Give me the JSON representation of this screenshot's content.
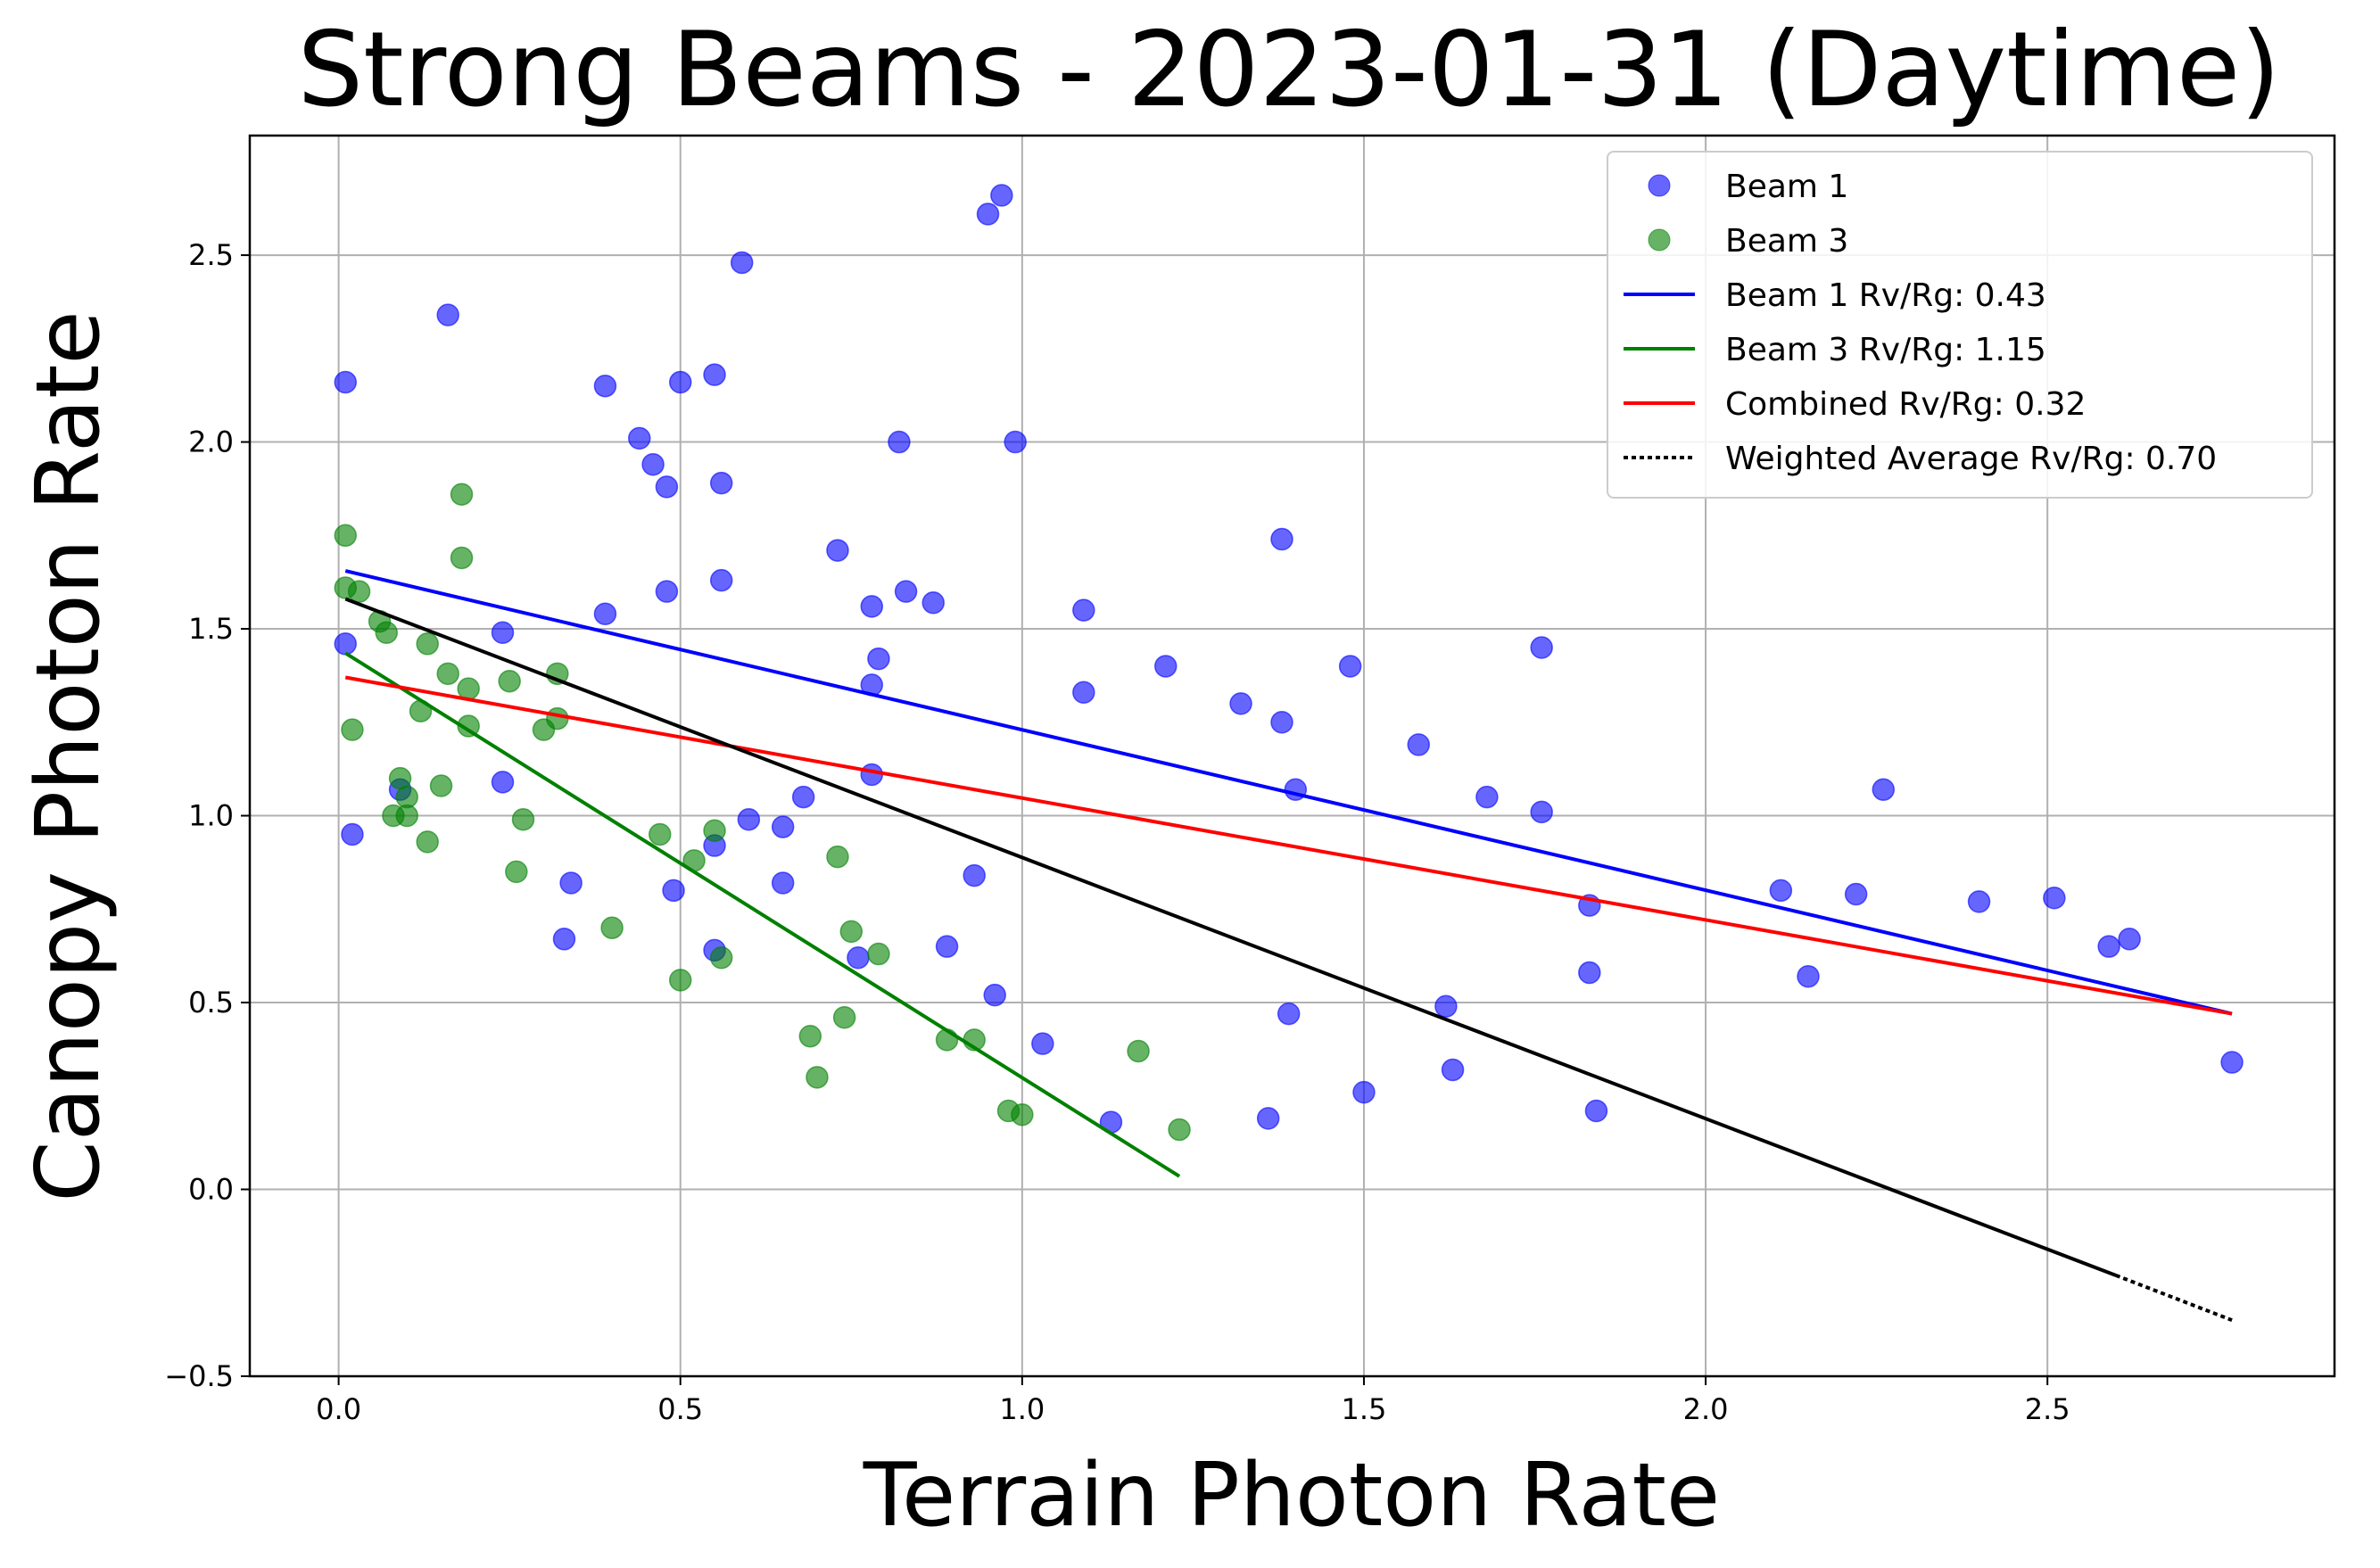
{
  "chart_data": {
    "type": "scatter",
    "title": "Strong Beams - 2023-01-31 (Daytime)",
    "xlabel": "Terrain Photon Rate",
    "ylabel": "Canopy Photon Rate",
    "xlim": [
      -0.13,
      2.92
    ],
    "ylim": [
      -0.5,
      2.82
    ],
    "xticks": [
      0.0,
      0.5,
      1.0,
      1.5,
      2.0,
      2.5
    ],
    "xtick_labels": [
      "0.0",
      "0.5",
      "1.0",
      "1.5",
      "2.0",
      "2.5"
    ],
    "yticks": [
      -0.5,
      0.0,
      0.5,
      1.0,
      1.5,
      2.0,
      2.5
    ],
    "ytick_labels": [
      "−0.5",
      "0.0",
      "0.5",
      "1.0",
      "1.5",
      "2.0",
      "2.5"
    ],
    "grid": true,
    "legend_position": "top-right",
    "series": [
      {
        "name": "Beam 1",
        "kind": "scatter",
        "color": "#0000ff",
        "points": [
          [
            0.01,
            2.16
          ],
          [
            0.02,
            0.95
          ],
          [
            0.01,
            1.46
          ],
          [
            0.16,
            2.34
          ],
          [
            0.24,
            1.49
          ],
          [
            0.24,
            1.09
          ],
          [
            0.09,
            1.07
          ],
          [
            0.33,
            0.67
          ],
          [
            0.34,
            0.82
          ],
          [
            0.39,
            2.15
          ],
          [
            0.39,
            1.54
          ],
          [
            0.44,
            2.01
          ],
          [
            0.46,
            1.94
          ],
          [
            0.48,
            1.88
          ],
          [
            0.48,
            1.6
          ],
          [
            0.49,
            0.8
          ],
          [
            0.5,
            2.16
          ],
          [
            0.55,
            2.18
          ],
          [
            0.56,
            1.89
          ],
          [
            0.56,
            1.63
          ],
          [
            0.55,
            0.92
          ],
          [
            0.55,
            0.64
          ],
          [
            0.59,
            2.48
          ],
          [
            0.6,
            0.99
          ],
          [
            0.65,
            0.97
          ],
          [
            0.65,
            0.82
          ],
          [
            0.68,
            1.05
          ],
          [
            0.73,
            1.71
          ],
          [
            0.76,
            0.62
          ],
          [
            0.78,
            1.56
          ],
          [
            0.79,
            1.42
          ],
          [
            0.78,
            1.35
          ],
          [
            0.78,
            1.11
          ],
          [
            0.82,
            2.0
          ],
          [
            0.83,
            1.6
          ],
          [
            0.87,
            1.57
          ],
          [
            0.89,
            0.65
          ],
          [
            0.93,
            0.84
          ],
          [
            0.95,
            2.61
          ],
          [
            0.97,
            2.66
          ],
          [
            0.96,
            0.52
          ],
          [
            0.99,
            2.0
          ],
          [
            1.03,
            0.39
          ],
          [
            1.09,
            1.55
          ],
          [
            1.09,
            1.33
          ],
          [
            1.13,
            0.18
          ],
          [
            1.21,
            1.4
          ],
          [
            1.32,
            1.3
          ],
          [
            1.36,
            0.19
          ],
          [
            1.38,
            1.74
          ],
          [
            1.38,
            1.25
          ],
          [
            1.39,
            0.47
          ],
          [
            1.4,
            1.07
          ],
          [
            1.48,
            1.4
          ],
          [
            1.5,
            0.26
          ],
          [
            1.58,
            1.19
          ],
          [
            1.62,
            0.49
          ],
          [
            1.63,
            0.32
          ],
          [
            1.68,
            1.05
          ],
          [
            1.76,
            1.45
          ],
          [
            1.76,
            1.01
          ],
          [
            1.83,
            0.76
          ],
          [
            1.83,
            0.58
          ],
          [
            1.84,
            0.21
          ],
          [
            2.11,
            0.8
          ],
          [
            2.15,
            0.57
          ],
          [
            2.22,
            0.79
          ],
          [
            2.26,
            1.07
          ],
          [
            2.4,
            0.77
          ],
          [
            2.51,
            0.78
          ],
          [
            2.59,
            0.65
          ],
          [
            2.62,
            0.67
          ],
          [
            2.77,
            0.34
          ]
        ]
      },
      {
        "name": "Beam 3",
        "kind": "scatter",
        "color": "#008000",
        "points": [
          [
            0.01,
            1.75
          ],
          [
            0.01,
            1.61
          ],
          [
            0.03,
            1.6
          ],
          [
            0.02,
            1.23
          ],
          [
            0.06,
            1.52
          ],
          [
            0.07,
            1.49
          ],
          [
            0.08,
            1.0
          ],
          [
            0.1,
            1.0
          ],
          [
            0.09,
            1.1
          ],
          [
            0.1,
            1.05
          ],
          [
            0.13,
            1.46
          ],
          [
            0.12,
            1.28
          ],
          [
            0.13,
            0.93
          ],
          [
            0.15,
            1.08
          ],
          [
            0.16,
            1.38
          ],
          [
            0.18,
            1.86
          ],
          [
            0.18,
            1.69
          ],
          [
            0.19,
            1.34
          ],
          [
            0.19,
            1.24
          ],
          [
            0.25,
            1.36
          ],
          [
            0.26,
            0.85
          ],
          [
            0.27,
            0.99
          ],
          [
            0.3,
            1.23
          ],
          [
            0.32,
            1.38
          ],
          [
            0.32,
            1.26
          ],
          [
            0.4,
            0.7
          ],
          [
            0.47,
            0.95
          ],
          [
            0.5,
            0.56
          ],
          [
            0.52,
            0.88
          ],
          [
            0.55,
            0.96
          ],
          [
            0.56,
            0.62
          ],
          [
            0.69,
            0.41
          ],
          [
            0.7,
            0.3
          ],
          [
            0.73,
            0.89
          ],
          [
            0.74,
            0.46
          ],
          [
            0.75,
            0.69
          ],
          [
            0.79,
            0.63
          ],
          [
            0.89,
            0.4
          ],
          [
            0.93,
            0.4
          ],
          [
            0.98,
            0.21
          ],
          [
            1.0,
            0.2
          ],
          [
            1.17,
            0.37
          ],
          [
            1.23,
            0.16
          ]
        ]
      },
      {
        "name": "Beam 1 Rv/Rg: 0.43",
        "kind": "line",
        "color": "#0000ff",
        "points": [
          [
            0.01,
            1.655
          ],
          [
            2.77,
            0.47
          ]
        ]
      },
      {
        "name": "Beam 3 Rv/Rg: 1.15",
        "kind": "line",
        "color": "#008000",
        "points": [
          [
            0.01,
            1.435
          ],
          [
            1.23,
            0.035
          ]
        ]
      },
      {
        "name": "Combined Rv/Rg: 0.32",
        "kind": "line",
        "color": "#ff0000",
        "points": [
          [
            0.01,
            1.37
          ],
          [
            2.77,
            0.47
          ]
        ]
      },
      {
        "name": "Weighted Average Rv/Rg: 0.70",
        "kind": "line",
        "color": "#000000",
        "points": [
          [
            0.01,
            1.58
          ],
          [
            2.6,
            -0.23
          ],
          [
            2.77,
            -0.35
          ]
        ],
        "dashed_from_x": 2.6
      }
    ]
  }
}
